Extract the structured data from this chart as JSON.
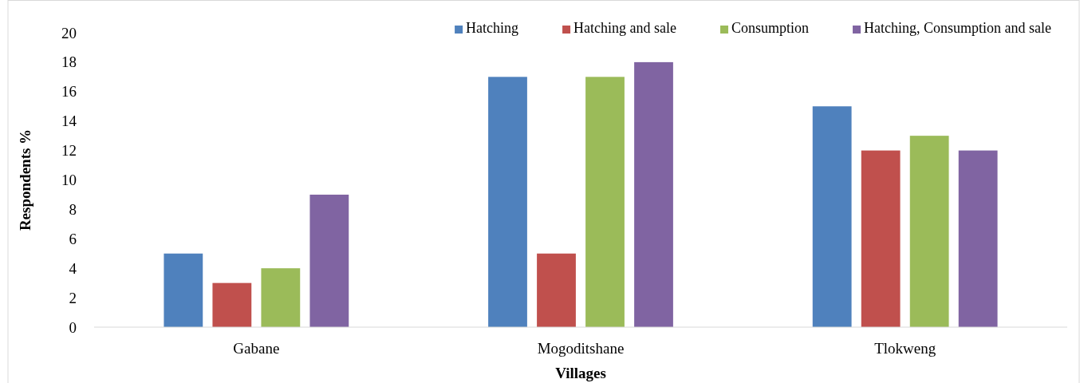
{
  "chart_data": {
    "type": "bar",
    "xlabel": "Villages",
    "ylabel": "Respondents %",
    "categories": [
      "Gabane",
      "Mogoditshane",
      "Tlokweng"
    ],
    "series": [
      {
        "name": "Hatching",
        "color": "#4f81bd",
        "values": [
          5,
          17,
          15
        ]
      },
      {
        "name": "Hatching and sale",
        "color": "#c0504d",
        "values": [
          3,
          5,
          12
        ]
      },
      {
        "name": "Consumption",
        "color": "#9bbb59",
        "values": [
          4,
          17,
          13
        ]
      },
      {
        "name": "Hatching, Consumption and sale",
        "color": "#8064a2",
        "values": [
          9,
          18,
          12
        ]
      }
    ],
    "ylim": [
      0,
      20
    ],
    "yticks": [
      0,
      2,
      4,
      6,
      8,
      10,
      12,
      14,
      16,
      18,
      20
    ],
    "grid": false,
    "legend": "top right"
  }
}
